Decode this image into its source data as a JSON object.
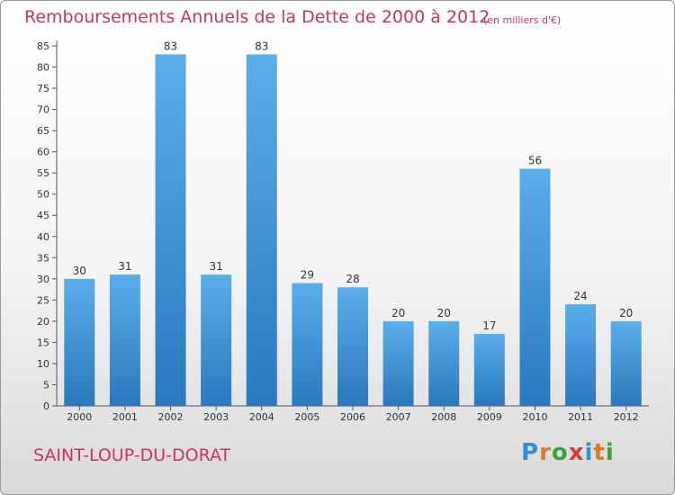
{
  "header": {
    "title": "Remboursements Annuels de la Dette de 2000 à 2012",
    "unit": "(en milliers d'€)"
  },
  "footer": {
    "city": "SAINT-LOUP-DU-DORAT",
    "logo_letters": [
      "P",
      "r",
      "o",
      "x",
      "i",
      "t",
      "i"
    ],
    "logo_colors": [
      "#2e8fd6",
      "#e07a1f",
      "#3aa63a",
      "#d63a3a",
      "#2e8fd6",
      "#e07a1f",
      "#3aa63a"
    ]
  },
  "chart_data": {
    "type": "bar",
    "title": "Remboursements Annuels de la Dette de 2000 à 2012",
    "categories": [
      "2000",
      "2001",
      "2002",
      "2003",
      "2004",
      "2005",
      "2006",
      "2007",
      "2008",
      "2009",
      "2010",
      "2011",
      "2012"
    ],
    "values": [
      30,
      31,
      83,
      31,
      83,
      29,
      28,
      20,
      20,
      17,
      56,
      24,
      20
    ],
    "ylim": [
      0,
      85
    ],
    "yticks": [
      0,
      5,
      10,
      15,
      20,
      25,
      30,
      35,
      40,
      45,
      50,
      55,
      60,
      65,
      70,
      75,
      80,
      85
    ],
    "grid": false,
    "bar_color": "#3d97dd"
  }
}
